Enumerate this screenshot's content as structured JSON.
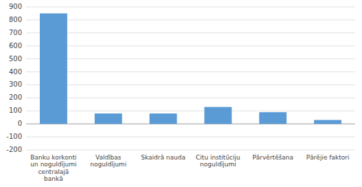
{
  "chart_data": {
    "type": "bar",
    "categories": [
      "Banku korkonti\nun noguldījumi\ncentralajā\nbankā",
      "Valdības\nnoguldījumi",
      "Skaidrā nauda",
      "Citu institūciju\nnoguldījumi",
      "Pārvērtēšana",
      "Pārējie faktori"
    ],
    "values": [
      850,
      80,
      80,
      130,
      90,
      30
    ],
    "color": "#5B9BD5",
    "ylim": [
      -200,
      900
    ],
    "yticks": [
      -200,
      -100,
      0,
      100,
      200,
      300,
      400,
      500,
      600,
      700,
      800,
      900
    ],
    "grid": true
  }
}
